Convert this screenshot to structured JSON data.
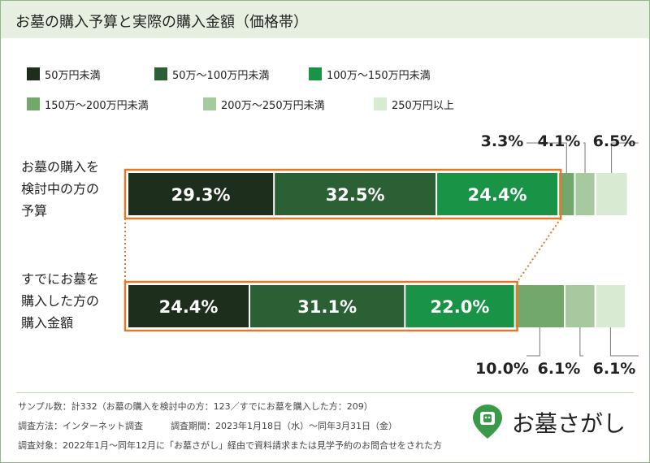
{
  "title": "お墓の購入予算と実際の購入金額（価格帯）",
  "legend": [
    {
      "label": "50万円未満",
      "color": "#1e2e1c"
    },
    {
      "label": "50万〜100万円未満",
      "color": "#2b5f34"
    },
    {
      "label": "100万〜150万円未満",
      "color": "#199447"
    },
    {
      "label": "150万〜200万円未満",
      "color": "#72a86c"
    },
    {
      "label": "200万〜250万円未満",
      "color": "#a6c99f"
    },
    {
      "label": "250万円以上",
      "color": "#d9ead3"
    }
  ],
  "chart_data": {
    "type": "bar",
    "orientation": "horizontal-stacked",
    "categories": [
      "お墓の購入を検討中の方の予算",
      "すでにお墓を購入した方の購入金額"
    ],
    "category_lines": [
      [
        "お墓の購入を",
        "検討中の方の",
        "予算"
      ],
      [
        "すでにお墓を",
        "購入した方の",
        "購入金額"
      ]
    ],
    "series": [
      {
        "name": "50万円未満",
        "values": [
          29.3,
          24.4
        ]
      },
      {
        "name": "50万〜100万円未満",
        "values": [
          32.5,
          31.1
        ]
      },
      {
        "name": "100万〜150万円未満",
        "values": [
          24.4,
          22.0
        ]
      },
      {
        "name": "150万〜200万円未満",
        "values": [
          3.3,
          10.0
        ]
      },
      {
        "name": "200万〜250万円未満",
        "values": [
          4.1,
          6.1
        ]
      },
      {
        "name": "250万円以上",
        "values": [
          6.5,
          6.1
        ]
      }
    ],
    "labels": [
      [
        "29.3%",
        "32.5%",
        "24.4%",
        "3.3%",
        "4.1%",
        "6.5%"
      ],
      [
        "24.4%",
        "31.1%",
        "22.0%",
        "10.0%",
        "6.1%",
        "6.1%"
      ]
    ],
    "xlim": [
      0,
      100
    ]
  },
  "footer": {
    "sample": "サンプル数：計332（お墓の購入を検討中の方：123／すでにお墓を購入した方：209）",
    "method": "調査方法：インターネット調査",
    "period": "調査期間：2023年1月18日（水）〜同年3月31日（金）",
    "target": "調査対象：2022年1月〜同年12月に「お墓さがし」経由で資料請求または見学予約のお問合せをされた方"
  },
  "logo": {
    "text": "お墓さがし",
    "icon": "tombstone-leaf-icon"
  }
}
